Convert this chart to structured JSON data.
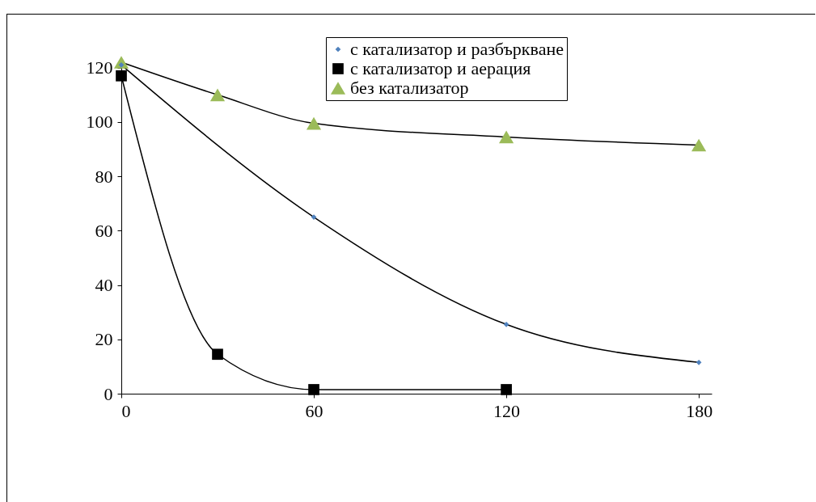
{
  "chart_data": {
    "type": "line",
    "xlim": [
      0,
      184
    ],
    "xticks": [
      0,
      60,
      120,
      180
    ],
    "ylim": [
      0,
      122
    ],
    "yticks": [
      0,
      20,
      40,
      60,
      80,
      100,
      120
    ],
    "grid": false,
    "legend": "top right",
    "line_style": "solid",
    "series": [
      {
        "name": "с катализатор и разбъркване",
        "color": "#4f81bd",
        "marker": "diamond",
        "x": [
          0,
          60,
          120,
          180
        ],
        "values": [
          121,
          65,
          25.5,
          11.5
        ]
      },
      {
        "name": "с катализатор и аерация",
        "color": "#000000",
        "marker": "square",
        "x": [
          0,
          30,
          60,
          120
        ],
        "values": [
          117,
          14.5,
          1.5,
          1.5
        ]
      },
      {
        "name": "без катализатор",
        "color": "#9bbb59",
        "marker": "triangle",
        "x": [
          0,
          30,
          60,
          120,
          180
        ],
        "values": [
          122,
          110,
          99.5,
          94.5,
          91.5
        ]
      }
    ]
  }
}
